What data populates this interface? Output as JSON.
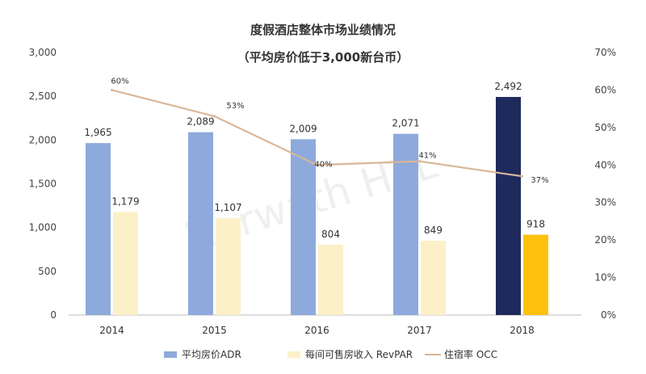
{
  "chart_data": {
    "type": "bar",
    "title": "度假酒店整体市场业绩情况",
    "subtitle": "（平均房价低于3,000新台币）",
    "categories": [
      "2014",
      "2015",
      "2016",
      "2017",
      "2018"
    ],
    "series": [
      {
        "name": "平均房价ADR",
        "type": "bar",
        "axis": "left",
        "values": [
          1965,
          2089,
          2009,
          2071,
          2492
        ],
        "data_labels": [
          "1,965",
          "2,089",
          "2,009",
          "2,071",
          "2,492"
        ],
        "color": "#8EA9DB",
        "highlight_color": "#1F2A5C"
      },
      {
        "name": "每间可售房收入 RevPAR",
        "type": "bar",
        "axis": "left",
        "values": [
          1179,
          1107,
          804,
          849,
          918
        ],
        "data_labels": [
          "1,179",
          "1,107",
          "804",
          "849",
          "918"
        ],
        "color": "#FCF0C8",
        "highlight_color": "#FDC10E"
      },
      {
        "name": "住宿率 OCC",
        "type": "line",
        "axis": "right",
        "values": [
          60,
          53,
          40,
          41,
          37
        ],
        "data_labels": [
          "60%",
          "53%",
          "40%",
          "41%",
          "37%"
        ],
        "color": "#D9B79A"
      }
    ],
    "y_left": {
      "range": [
        0,
        3000
      ],
      "ticks": [
        0,
        500,
        1000,
        1500,
        2000,
        2500,
        3000
      ],
      "tick_labels": [
        "0",
        "500",
        "1,000",
        "1,500",
        "2,000",
        "2,500",
        "3,000"
      ]
    },
    "y_right": {
      "range": [
        0,
        70
      ],
      "ticks": [
        0,
        10,
        20,
        30,
        40,
        50,
        60,
        70
      ],
      "tick_labels": [
        "0%",
        "10%",
        "20%",
        "30%",
        "40%",
        "50%",
        "60%",
        "70%"
      ]
    },
    "highlight_category": "2018",
    "grid": false,
    "legend_position": "bottom",
    "watermark": "Horwath HTL"
  }
}
